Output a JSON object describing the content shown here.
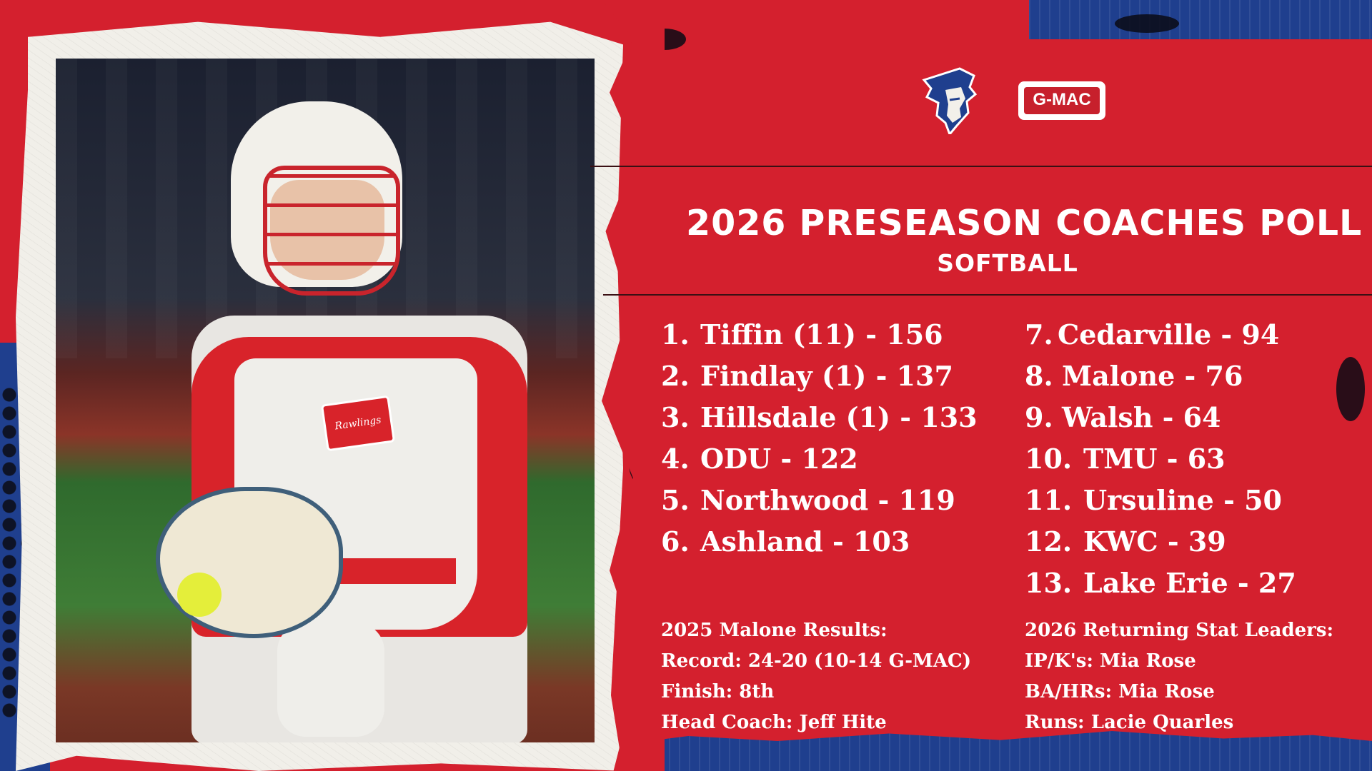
{
  "header": {
    "title": "2026 PRESEASON COACHES POLL",
    "subtitle": "SOFTBALL",
    "gmac_logo_text": "G-MAC"
  },
  "poll": {
    "left": [
      {
        "rank": "1.",
        "text": "Tiffin (11) - 156"
      },
      {
        "rank": "2.",
        "text": "Findlay (1) - 137"
      },
      {
        "rank": "3.",
        "text": "Hillsdale (1) - 133"
      },
      {
        "rank": "4.",
        "text": "ODU - 122"
      },
      {
        "rank": "5.",
        "text": "Northwood - 119"
      },
      {
        "rank": "6.",
        "text": "Ashland - 103"
      }
    ],
    "right": [
      {
        "rank": "7.",
        "text": "Cedarville - 94"
      },
      {
        "rank": "8.",
        "text": "Malone - 76"
      },
      {
        "rank": "9.",
        "text": "Walsh - 64"
      },
      {
        "rank": "10.",
        "text": "TMU - 63"
      },
      {
        "rank": "11.",
        "text": "Ursuline - 50"
      },
      {
        "rank": "12.",
        "text": "KWC - 39"
      },
      {
        "rank": "13.",
        "text": "Lake Erie - 27"
      }
    ]
  },
  "results": {
    "heading": "2025 Malone Results:",
    "lines": [
      "Record: 24-20 (10-14 G-MAC)",
      "Finish: 8th",
      "Head Coach: Jeff Hite"
    ]
  },
  "leaders": {
    "heading": "2026 Returning Stat Leaders:",
    "lines": [
      "IP/K's: Mia Rose",
      "BA/HRs: Mia Rose",
      "Runs: Lacie Quarles"
    ]
  },
  "photo": {
    "chest_logo_text": "Rawlings"
  },
  "colors": {
    "red": "#d4202e",
    "blue": "#1f3f8e",
    "paper": "#f1efe9",
    "text": "#ffffff"
  }
}
